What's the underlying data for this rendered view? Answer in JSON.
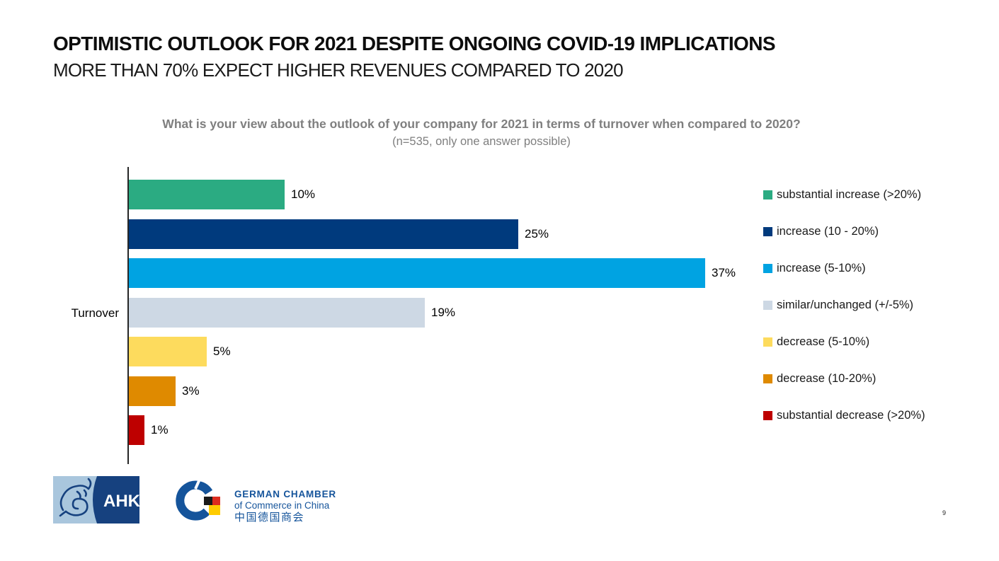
{
  "slide": {
    "title": "OPTIMISTIC OUTLOOK FOR 2021 DESPITE ONGOING COVID-19 IMPLICATIONS",
    "subtitle": "MORE THAN 70% EXPECT HIGHER REVENUES COMPARED TO 2020",
    "page_number": "9"
  },
  "chart_data": {
    "type": "bar",
    "orientation": "horizontal",
    "title": "What is your view about the outlook of your company for 2021 in terms of turnover when compared to 2020?",
    "subtitle": "(n=535, only one answer possible)",
    "categories": [
      "Turnover"
    ],
    "value_unit": "%",
    "xlim": [
      0,
      40
    ],
    "grid": false,
    "legend_position": "right",
    "series": [
      {
        "name": "substantial increase (>20%)",
        "value": 10,
        "label": "10%",
        "color": "#2bab82"
      },
      {
        "name": "increase (10 - 20%)",
        "value": 25,
        "label": "25%",
        "color": "#003a7d"
      },
      {
        "name": "increase (5-10%)",
        "value": 37,
        "label": "37%",
        "color": "#00a3e2"
      },
      {
        "name": "similar/unchanged (+/-5%)",
        "value": 19,
        "label": "19%",
        "color": "#cdd8e4"
      },
      {
        "name": "decrease (5-10%)",
        "value": 5,
        "label": "5%",
        "color": "#fddb5d"
      },
      {
        "name": "decrease (10-20%)",
        "value": 3,
        "label": "3%",
        "color": "#df8a00"
      },
      {
        "name": "substantial decrease (>20%)",
        "value": 1,
        "label": "1%",
        "color": "#be0000"
      }
    ]
  },
  "footer": {
    "ahk_logo_text": "AHK",
    "chamber_name": "GERMAN CHAMBER",
    "chamber_subtitle": "of Commerce in China",
    "chamber_chinese": "中国德国商会"
  }
}
